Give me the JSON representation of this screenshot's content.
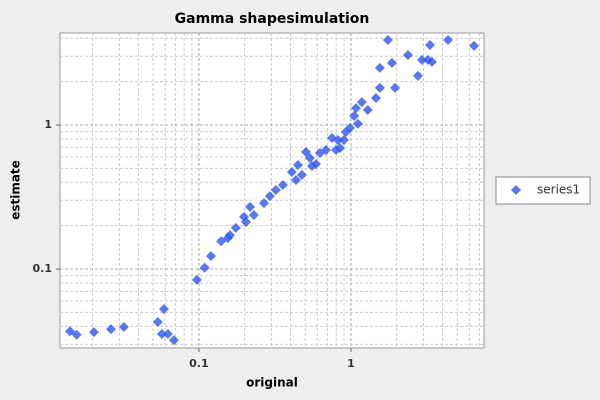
{
  "chart_data": {
    "type": "scatter",
    "title": "Gamma shapesimulation",
    "x_label": "original",
    "y_label": "estimate",
    "log_x": true,
    "log_y": true,
    "grid": true,
    "legend": "right",
    "xlim": [
      0.0122,
      7.5
    ],
    "ylim": [
      0.0283,
      4.35
    ],
    "xticks": [
      0.1,
      1
    ],
    "yticks": [
      0.1,
      1
    ],
    "series": [
      {
        "name": "series1",
        "color": "#2f55ee",
        "x": [
          0.0142,
          0.0157,
          0.0204,
          0.0264,
          0.0321,
          0.0537,
          0.0589,
          0.0571,
          0.0625,
          0.0685,
          0.097,
          0.109,
          0.12,
          0.14,
          0.155,
          0.175,
          0.198,
          0.217,
          0.23,
          0.268,
          0.293,
          0.321,
          0.357,
          0.409,
          0.448,
          0.476,
          0.537,
          0.589,
          0.625,
          0.685,
          0.75,
          0.821,
          0.847,
          0.927,
          0.985,
          1.05,
          1.11,
          1.18,
          1.29,
          1.46,
          1.55,
          1.55,
          1.75,
          1.86,
          1.95,
          2.37,
          2.76,
          2.93,
          3.21,
          3.31,
          3.41,
          4.35,
          6.45,
          0.435,
          0.506,
          0.797,
          0.899,
          1.08,
          0.554,
          0.204,
          0.16
        ],
        "values": [
          0.037,
          0.035,
          0.0365,
          0.0383,
          0.0396,
          0.0429,
          0.0528,
          0.0354,
          0.0354,
          0.0321,
          0.084,
          0.102,
          0.123,
          0.156,
          0.164,
          0.193,
          0.23,
          0.27,
          0.237,
          0.287,
          0.321,
          0.354,
          0.383,
          0.472,
          0.527,
          0.45,
          0.59,
          0.536,
          0.639,
          0.67,
          0.812,
          0.787,
          0.692,
          0.894,
          0.953,
          1.155,
          1.02,
          1.44,
          1.27,
          1.54,
          1.81,
          2.49,
          3.89,
          2.7,
          1.81,
          3.06,
          2.19,
          2.83,
          2.83,
          3.59,
          2.74,
          3.89,
          3.54,
          0.415,
          0.649,
          0.67,
          0.787,
          1.31,
          0.519,
          0.212,
          0.172
        ]
      }
    ]
  }
}
